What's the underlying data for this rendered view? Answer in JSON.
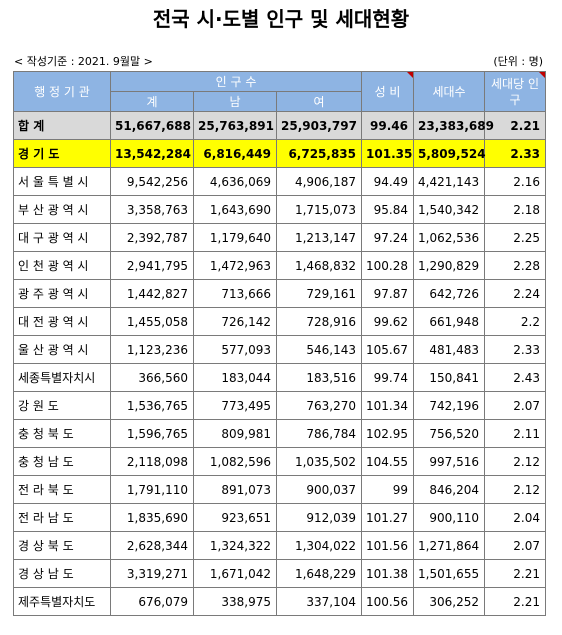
{
  "title": "전국 시·도별 인구 및 세대현황",
  "basis": "< 작성기준 : 2021. 9월말 >",
  "unit": "(단위 : 명)",
  "headers": {
    "admin": "행 정 기 관",
    "population": "인 구 수",
    "total": "계",
    "male": "남",
    "female": "여",
    "sex_ratio": "성 비",
    "households": "세대수",
    "per_household": "세대당 인구"
  },
  "rows": [
    {
      "name": "합          계",
      "total": "51,667,688",
      "male": "25,763,891",
      "female": "25,903,797",
      "ratio": "99.46",
      "households": "23,383,689",
      "per": "2.21"
    },
    {
      "name": "경     기     도",
      "total": "13,542,284",
      "male": "6,816,449",
      "female": "6,725,835",
      "ratio": "101.35",
      "households": "5,809,524",
      "per": "2.33"
    },
    {
      "name": "서 울 특 별 시",
      "total": "9,542,256",
      "male": "4,636,069",
      "female": "4,906,187",
      "ratio": "94.49",
      "households": "4,421,143",
      "per": "2.16"
    },
    {
      "name": "부 산 광 역 시",
      "total": "3,358,763",
      "male": "1,643,690",
      "female": "1,715,073",
      "ratio": "95.84",
      "households": "1,540,342",
      "per": "2.18"
    },
    {
      "name": "대 구 광 역 시",
      "total": "2,392,787",
      "male": "1,179,640",
      "female": "1,213,147",
      "ratio": "97.24",
      "households": "1,062,536",
      "per": "2.25"
    },
    {
      "name": "인 천 광 역 시",
      "total": "2,941,795",
      "male": "1,472,963",
      "female": "1,468,832",
      "ratio": "100.28",
      "households": "1,290,829",
      "per": "2.28"
    },
    {
      "name": "광 주 광 역 시",
      "total": "1,442,827",
      "male": "713,666",
      "female": "729,161",
      "ratio": "97.87",
      "households": "642,726",
      "per": "2.24"
    },
    {
      "name": "대 전 광 역 시",
      "total": "1,455,058",
      "male": "726,142",
      "female": "728,916",
      "ratio": "99.62",
      "households": "661,948",
      "per": "2.2"
    },
    {
      "name": "울 산 광 역 시",
      "total": "1,123,236",
      "male": "577,093",
      "female": "546,143",
      "ratio": "105.67",
      "households": "481,483",
      "per": "2.33"
    },
    {
      "name": "세종특별자치시",
      "total": "366,560",
      "male": "183,044",
      "female": "183,516",
      "ratio": "99.74",
      "households": "150,841",
      "per": "2.43"
    },
    {
      "name": "강     원     도",
      "total": "1,536,765",
      "male": "773,495",
      "female": "763,270",
      "ratio": "101.34",
      "households": "742,196",
      "per": "2.07"
    },
    {
      "name": "충  청  북  도",
      "total": "1,596,765",
      "male": "809,981",
      "female": "786,784",
      "ratio": "102.95",
      "households": "756,520",
      "per": "2.11"
    },
    {
      "name": "충  청  남  도",
      "total": "2,118,098",
      "male": "1,082,596",
      "female": "1,035,502",
      "ratio": "104.55",
      "households": "997,516",
      "per": "2.12"
    },
    {
      "name": "전  라  북  도",
      "total": "1,791,110",
      "male": "891,073",
      "female": "900,037",
      "ratio": "99",
      "households": "846,204",
      "per": "2.12"
    },
    {
      "name": "전  라  남  도",
      "total": "1,835,690",
      "male": "923,651",
      "female": "912,039",
      "ratio": "101.27",
      "households": "900,110",
      "per": "2.04"
    },
    {
      "name": "경  상  북  도",
      "total": "2,628,344",
      "male": "1,324,322",
      "female": "1,304,022",
      "ratio": "101.56",
      "households": "1,271,864",
      "per": "2.07"
    },
    {
      "name": "경  상  남  도",
      "total": "3,319,271",
      "male": "1,671,042",
      "female": "1,648,229",
      "ratio": "101.38",
      "households": "1,501,655",
      "per": "2.21"
    },
    {
      "name": "제주특별자치도",
      "total": "676,079",
      "male": "338,975",
      "female": "337,104",
      "ratio": "100.56",
      "households": "306,252",
      "per": "2.21"
    }
  ],
  "colors": {
    "header_bg": "#8eb4e3",
    "total_row_bg": "#d9d9d9",
    "highlight_row_bg": "#ffff00",
    "comment_marker": "#c00000"
  }
}
